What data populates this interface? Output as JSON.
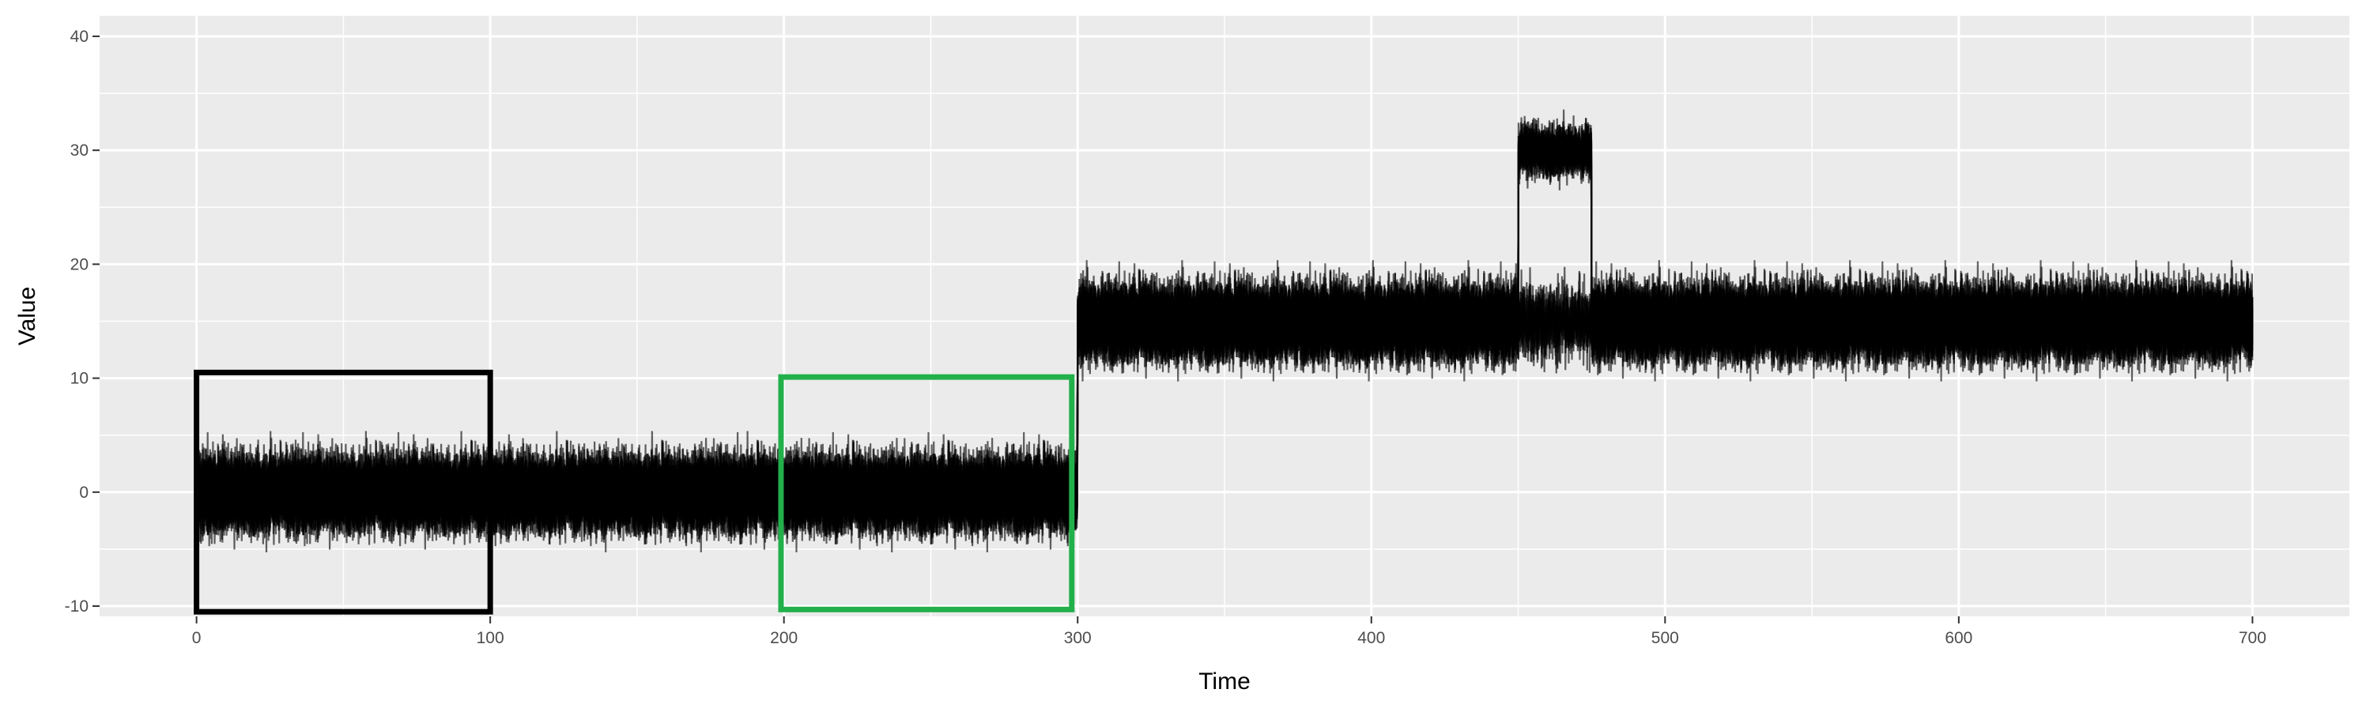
{
  "chart_data": {
    "type": "line",
    "title": "",
    "xlabel": "Time",
    "ylabel": "Value",
    "xlim": [
      -33,
      733
    ],
    "ylim": [
      -10.9,
      41.8
    ],
    "x_ticks": [
      0,
      100,
      200,
      300,
      400,
      500,
      600,
      700
    ],
    "x_tick_labels": [
      "0",
      "100",
      "200",
      "300",
      "400",
      "500",
      "600",
      "700"
    ],
    "y_ticks": [
      -10,
      0,
      10,
      20,
      30,
      40
    ],
    "y_tick_labels": [
      "-10",
      "0",
      "10",
      "20",
      "30",
      "40"
    ],
    "grid": true,
    "background": "#ebebeb",
    "line_color": "#000000",
    "series_count": 20,
    "segments": [
      {
        "x_start": 0,
        "x_end": 300,
        "mean": 0,
        "spread": [
          -6,
          6
        ]
      },
      {
        "x_start": 300,
        "x_end": 700,
        "mean": 15,
        "spread": [
          9,
          21
        ]
      },
      {
        "x_start": 450,
        "x_end": 475,
        "mean": 30,
        "spread": [
          17,
          38
        ],
        "note_only_in_some_series": true
      }
    ],
    "rectangles": [
      {
        "x": [
          0,
          100
        ],
        "y": [
          -10.5,
          10.5
        ],
        "color": "#000000"
      },
      {
        "x": [
          199,
          298
        ],
        "y": [
          -10.3,
          10.1
        ],
        "color": "#22b04a"
      }
    ]
  }
}
